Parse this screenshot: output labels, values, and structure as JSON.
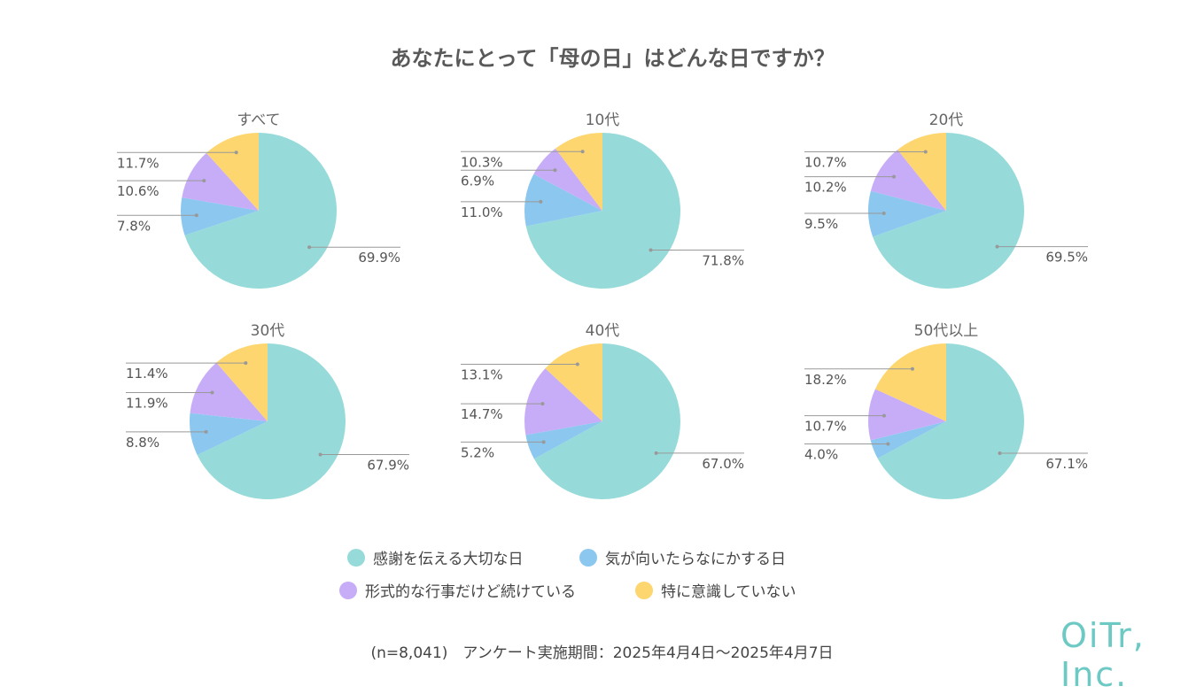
{
  "title": "あなたにとって「母の日」はどんな日ですか？",
  "chart_data": {
    "type": "pie",
    "categories": [
      "感謝を伝える大切な日",
      "気が向いたらなにかする日",
      "形式的な行事だけど続けている",
      "特に意識していない"
    ],
    "colors": [
      "#96dbd9",
      "#8bc7ef",
      "#c7adf7",
      "#fed66f"
    ],
    "pies": [
      {
        "name": "すべて",
        "values": [
          69.9,
          7.8,
          10.6,
          11.7
        ],
        "labels": [
          "69.9%",
          "7.8%",
          "10.6%",
          "11.7%"
        ]
      },
      {
        "name": "10代",
        "values": [
          71.8,
          11.0,
          6.9,
          10.3
        ],
        "labels": [
          "71.8%",
          "11.0%",
          "6.9%",
          "10.3%"
        ]
      },
      {
        "name": "20代",
        "values": [
          69.5,
          9.5,
          10.2,
          10.7
        ],
        "labels": [
          "69.5%",
          "9.5%",
          "10.2%",
          "10.7%"
        ]
      },
      {
        "name": "30代",
        "values": [
          67.9,
          8.8,
          11.9,
          11.4
        ],
        "labels": [
          "67.9%",
          "8.8%",
          "11.9%",
          "11.4%"
        ]
      },
      {
        "name": "40代",
        "values": [
          67.0,
          5.2,
          14.7,
          13.1
        ],
        "labels": [
          "67.0%",
          "5.2%",
          "14.7%",
          "13.1%"
        ]
      },
      {
        "name": "50代以上",
        "values": [
          67.1,
          4.0,
          10.7,
          18.2
        ],
        "labels": [
          "67.1%",
          "4.0%",
          "10.7%",
          "18.2%"
        ]
      }
    ],
    "legend": [
      "感謝を伝える大切な日",
      "気が向いたらなにかする日",
      "形式的な行事だけど続けている",
      "特に意識していない"
    ],
    "legend_position": "bottom"
  },
  "footer": "(n=8,041)　アンケート実施期間：2025年4月4日〜2025年4月7日",
  "brand": "OiTr, Inc."
}
